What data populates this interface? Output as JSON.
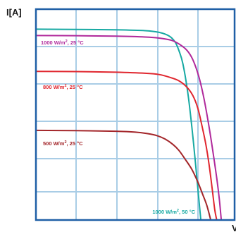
{
  "chart_data": {
    "type": "line",
    "ylabel": "I[A]",
    "xlabel": "V",
    "xlim": [
      0,
      100
    ],
    "ylim": [
      0,
      100
    ],
    "grid": true,
    "colors": {
      "frame": "#1f5fa6",
      "grid": "#a9cde6"
    },
    "series": [
      {
        "name": "1000 W/m², 50 °C",
        "color": "#17a9a3",
        "label_parts": [
          "1000 W/m",
          "2",
          ", 50 °C"
        ],
        "label_anchor": "end",
        "points": [
          [
            0,
            90.5
          ],
          [
            20,
            90.4
          ],
          [
            40,
            90.2
          ],
          [
            55,
            89.8
          ],
          [
            62,
            89.0
          ],
          [
            67,
            87.3
          ],
          [
            70,
            84.5
          ],
          [
            72,
            80.3
          ],
          [
            74,
            74
          ],
          [
            76.5,
            60
          ],
          [
            78.5,
            44
          ],
          [
            80,
            30
          ],
          [
            81.5,
            15
          ],
          [
            82.3,
            7
          ],
          [
            83,
            0
          ]
        ]
      },
      {
        "name": "1000 W/m², 25 °C",
        "color": "#b0299b",
        "label_parts": [
          "1000 W/m",
          "2",
          ", 25 °C"
        ],
        "label_anchor": "start",
        "points": [
          [
            0,
            87.5
          ],
          [
            20,
            87.4
          ],
          [
            40,
            87.2
          ],
          [
            55,
            86.8
          ],
          [
            62,
            86.3
          ],
          [
            68,
            85.3
          ],
          [
            72,
            83.5
          ],
          [
            76,
            80.5
          ],
          [
            79,
            76
          ],
          [
            82,
            68
          ],
          [
            84.5,
            58
          ],
          [
            87,
            45
          ],
          [
            89,
            33
          ],
          [
            91,
            20
          ],
          [
            92.3,
            10
          ],
          [
            93.3,
            0
          ]
        ]
      },
      {
        "name": "800 W/m², 25 °C",
        "color": "#e0262e",
        "label_parts": [
          "800 W/m",
          "2",
          ", 25 °C"
        ],
        "label_anchor": "start",
        "points": [
          [
            0,
            70.5
          ],
          [
            20,
            70.4
          ],
          [
            40,
            70.1
          ],
          [
            55,
            69.6
          ],
          [
            62,
            69.0
          ],
          [
            68,
            67.5
          ],
          [
            72,
            66.0
          ],
          [
            76,
            63
          ],
          [
            79,
            59
          ],
          [
            81.5,
            53
          ],
          [
            83.5,
            45
          ],
          [
            85.5,
            36
          ],
          [
            87.2,
            26
          ],
          [
            88.7,
            15
          ],
          [
            90,
            5
          ],
          [
            91,
            0
          ]
        ]
      },
      {
        "name": "500 W/m², 25 °C",
        "color": "#a3262a",
        "label_parts": [
          "500 W/m",
          "2",
          ", 25 °C"
        ],
        "label_anchor": "start",
        "points": [
          [
            0,
            42.5
          ],
          [
            20,
            42.4
          ],
          [
            40,
            42.1
          ],
          [
            50,
            41.7
          ],
          [
            56,
            41.0
          ],
          [
            61,
            40.0
          ],
          [
            65,
            38.4
          ],
          [
            69,
            35.8
          ],
          [
            72,
            33.0
          ],
          [
            75,
            29
          ],
          [
            78.5,
            24
          ],
          [
            81.5,
            18
          ],
          [
            84,
            12
          ],
          [
            86,
            7
          ],
          [
            88,
            0
          ]
        ]
      }
    ]
  }
}
